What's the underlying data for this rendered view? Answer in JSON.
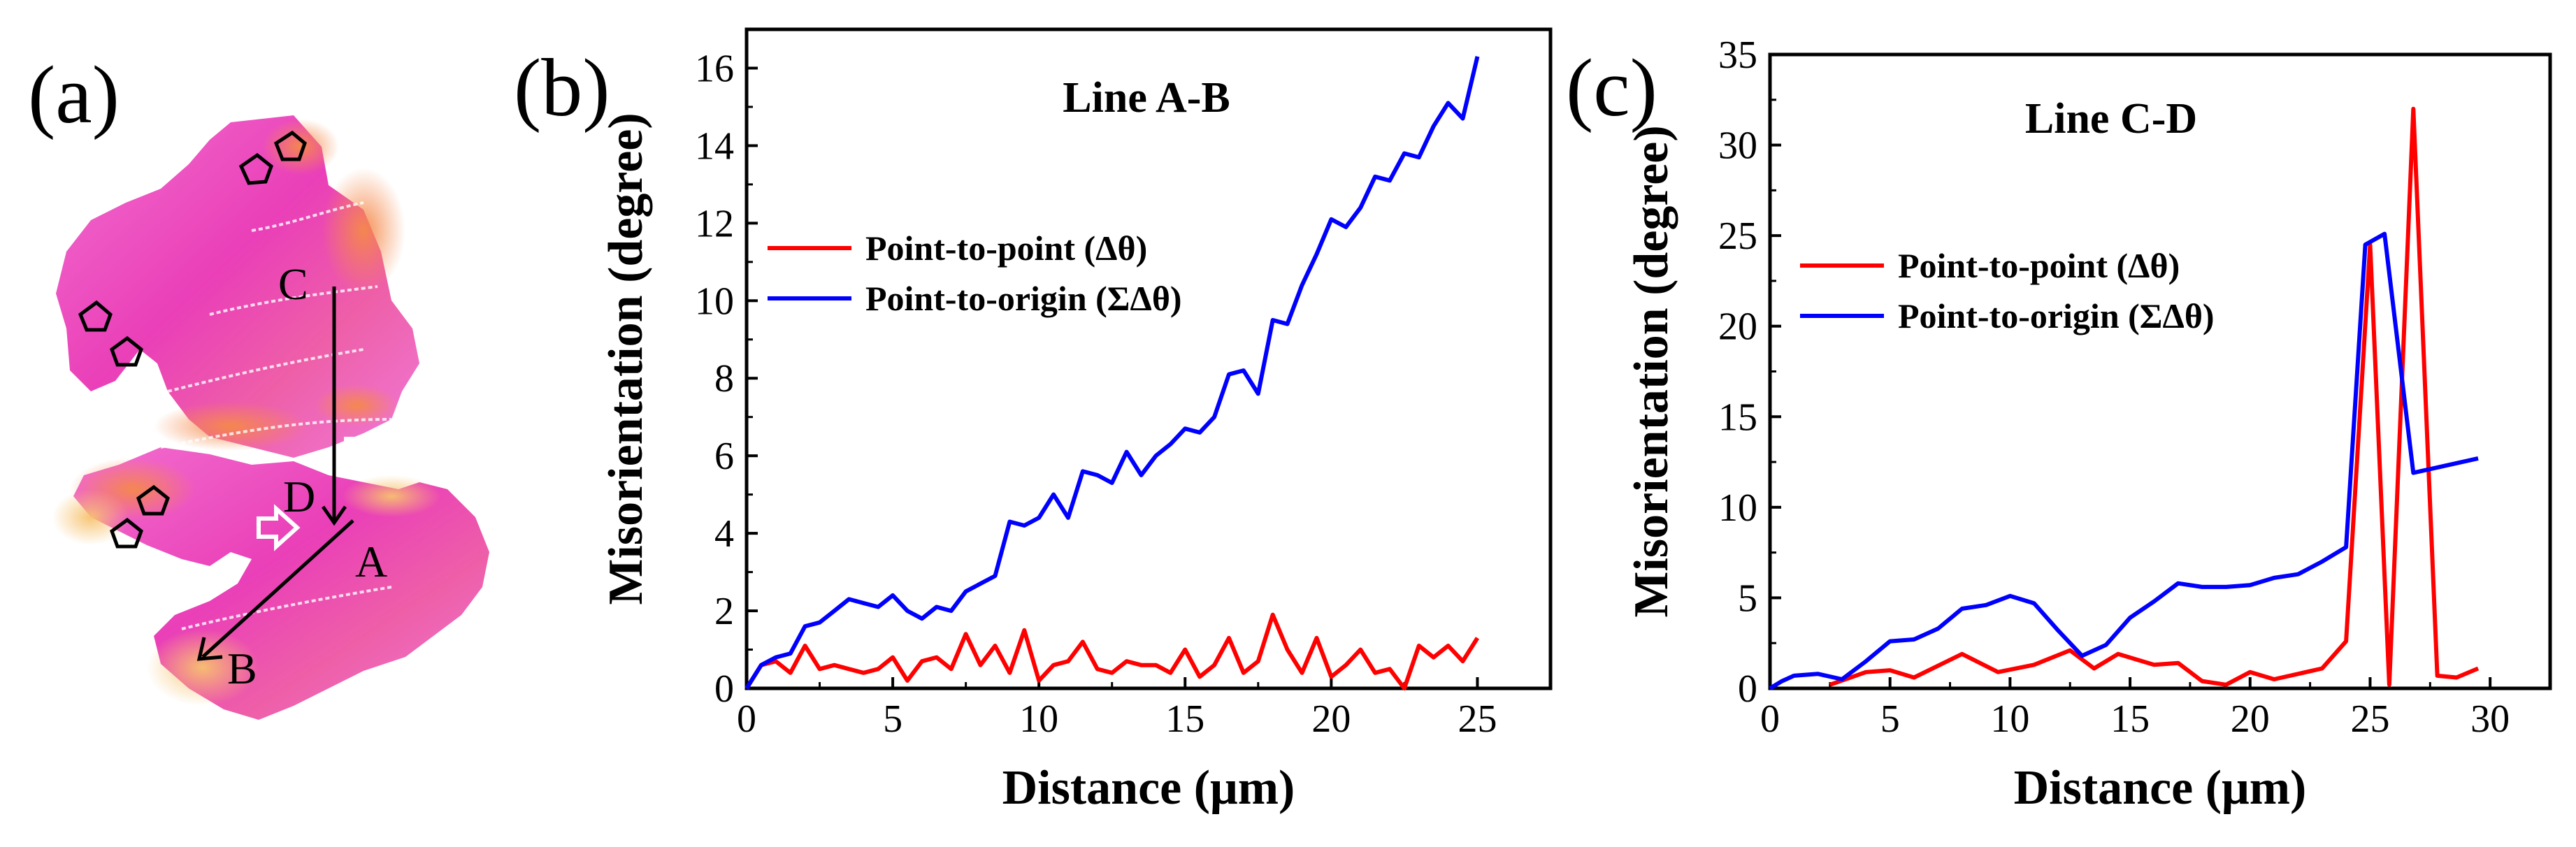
{
  "panel_labels": [
    "(a)",
    "(b)",
    "(c)"
  ],
  "map": {
    "colors": {
      "magenta": "#ea3fb8",
      "pink": "#f26fcf",
      "orange": "#f5894a",
      "yellow": "#f7c26e"
    },
    "letters": {
      "A": "A",
      "B": "B",
      "C": "C",
      "D": "D"
    }
  },
  "chart_data": [
    {
      "type": "line",
      "title": "Line A-B",
      "xlabel": "Distance (μm)",
      "ylabel": "Misorientation (degree)",
      "xlim": [
        0,
        27.5
      ],
      "ylim": [
        0,
        17
      ],
      "xticks": [
        0,
        5,
        10,
        15,
        20,
        25
      ],
      "yticks": [
        0,
        2,
        4,
        6,
        8,
        10,
        12,
        14,
        16
      ],
      "legend": {
        "position": "middle-left"
      },
      "series": [
        {
          "name": "Point-to-point (Δθ)",
          "color": "#ff0000",
          "x": [
            0,
            0.5,
            1,
            1.5,
            2,
            2.5,
            3,
            3.5,
            4,
            4.5,
            5,
            5.5,
            6,
            6.5,
            7,
            7.5,
            8,
            8.5,
            9,
            9.5,
            10,
            10.5,
            11,
            11.5,
            12,
            12.5,
            13,
            13.5,
            14,
            14.5,
            15,
            15.5,
            16,
            16.5,
            17,
            17.5,
            18,
            18.5,
            19,
            19.5,
            20,
            20.5,
            21,
            21.5,
            22,
            22.5,
            23,
            23.5,
            24,
            24.5,
            25
          ],
          "values": [
            0,
            0.6,
            0.7,
            0.4,
            1.1,
            0.5,
            0.6,
            0.5,
            0.4,
            0.5,
            0.8,
            0.2,
            0.7,
            0.8,
            0.5,
            1.4,
            0.6,
            1.1,
            0.4,
            1.5,
            0.2,
            0.6,
            0.7,
            1.2,
            0.5,
            0.4,
            0.7,
            0.6,
            0.6,
            0.4,
            1.0,
            0.3,
            0.6,
            1.3,
            0.4,
            0.7,
            1.9,
            1.0,
            0.4,
            1.3,
            0.3,
            0.6,
            1.0,
            0.4,
            0.5,
            0.0,
            1.1,
            0.8,
            1.1,
            0.7,
            1.3
          ]
        },
        {
          "name": "Point-to-origin (ΣΔθ)",
          "color": "#0000ff",
          "x": [
            0,
            0.5,
            1,
            1.5,
            2,
            2.5,
            3,
            3.5,
            4,
            4.5,
            5,
            5.5,
            6,
            6.5,
            7,
            7.5,
            8,
            8.5,
            9,
            9.5,
            10,
            10.5,
            11,
            11.5,
            12,
            12.5,
            13,
            13.5,
            14,
            14.5,
            15,
            15.5,
            16,
            16.5,
            17,
            17.5,
            18,
            18.5,
            19,
            19.5,
            20,
            20.5,
            21,
            21.5,
            22,
            22.5,
            23,
            23.5,
            24,
            24.5,
            25
          ],
          "values": [
            0,
            0.6,
            0.8,
            0.9,
            1.6,
            1.7,
            2.0,
            2.3,
            2.2,
            2.1,
            2.4,
            2.0,
            1.8,
            2.1,
            2.0,
            2.5,
            2.7,
            2.9,
            4.3,
            4.2,
            4.4,
            5.0,
            4.4,
            5.6,
            5.5,
            5.3,
            6.1,
            5.5,
            6.0,
            6.3,
            6.7,
            6.6,
            7.0,
            8.1,
            8.2,
            7.6,
            9.5,
            9.4,
            10.4,
            11.2,
            12.1,
            11.9,
            12.4,
            13.2,
            13.1,
            13.8,
            13.7,
            14.5,
            15.1,
            14.7,
            16.3
          ]
        }
      ]
    },
    {
      "type": "line",
      "title": "Line C-D",
      "xlabel": "Distance (μm)",
      "ylabel": "Misorientation (degree)",
      "xlim": [
        0,
        32.5
      ],
      "ylim": [
        0,
        35
      ],
      "xticks": [
        0,
        5,
        10,
        15,
        20,
        25,
        30
      ],
      "yticks": [
        0,
        5,
        10,
        15,
        20,
        25,
        30,
        35
      ],
      "legend": {
        "position": "middle-left"
      },
      "series": [
        {
          "name": "Point-to-point (Δθ)",
          "color": "#ff0000",
          "x": [
            2.5,
            4,
            5,
            6,
            8,
            9.5,
            11,
            12.5,
            13.5,
            14.5,
            16,
            17,
            18,
            19,
            20,
            21,
            22,
            23,
            24,
            25,
            25.8,
            26.8,
            27.8,
            28.6,
            29.5
          ],
          "values": [
            0.2,
            0.9,
            1.0,
            0.6,
            1.9,
            0.9,
            1.3,
            2.1,
            1.1,
            1.9,
            1.3,
            1.4,
            0.4,
            0.2,
            0.9,
            0.5,
            0.8,
            1.1,
            2.6,
            24.5,
            0.2,
            32.0,
            0.7,
            0.6,
            1.1
          ]
        },
        {
          "name": "Point-to-origin (ΣΔθ)",
          "color": "#0000ff",
          "x": [
            0,
            0.5,
            1,
            2,
            3,
            4,
            5,
            6,
            7,
            8,
            9,
            10,
            11,
            12,
            13,
            14,
            15,
            16,
            17,
            18,
            19,
            20,
            21,
            22,
            23,
            24,
            24.8,
            25.6,
            26.8,
            29.5
          ],
          "values": [
            0,
            0.4,
            0.7,
            0.8,
            0.5,
            1.5,
            2.6,
            2.7,
            3.3,
            4.4,
            4.6,
            5.1,
            4.7,
            3.2,
            1.8,
            2.4,
            3.9,
            4.8,
            5.8,
            5.6,
            5.6,
            5.7,
            6.1,
            6.3,
            7.0,
            7.8,
            24.5,
            25.1,
            11.9,
            12.7
          ]
        }
      ]
    }
  ]
}
